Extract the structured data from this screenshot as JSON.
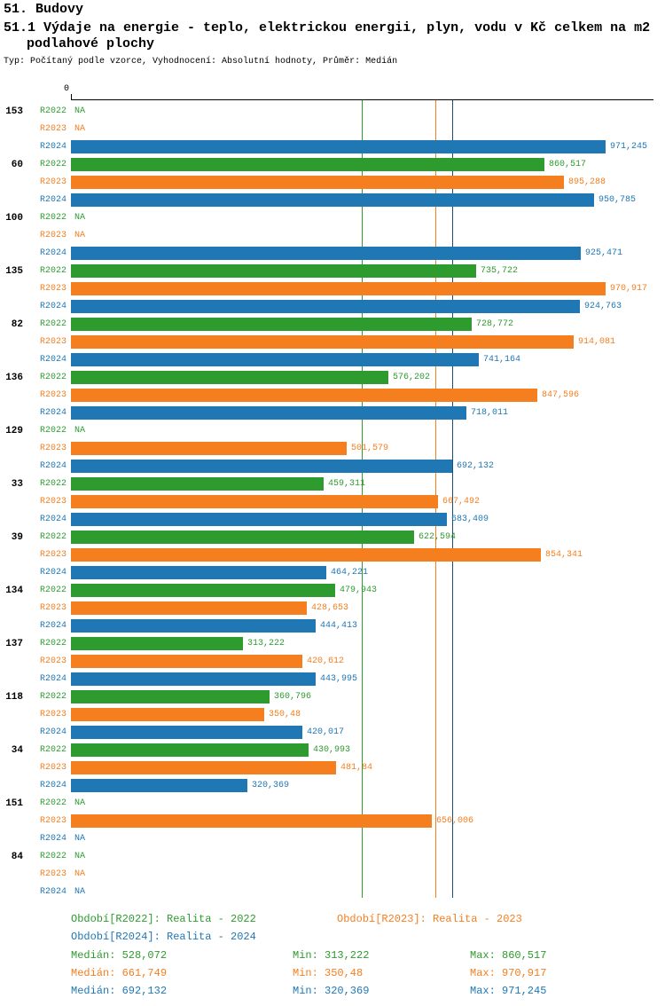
{
  "header": {
    "title": "51. Budovy",
    "subtitle_line1": "51.1 Výdaje na energie - teplo, elektrickou energii, plyn, vodu v Kč celkem na m2",
    "subtitle_line2": "podlahové plochy",
    "meta": "Typ: Počítaný podle vzorce, Vyhodnocení: Absolutní hodnoty, Průměr: Medián"
  },
  "chart_data": {
    "type": "bar",
    "orientation": "horizontal",
    "title": "51.1 Výdaje na energie - teplo, elektrickou energii, plyn, vodu v Kč celkem na m2 podlahové plochy",
    "axis": {
      "zero_label": "0",
      "xlim": [
        0,
        1060
      ],
      "gridlines": false
    },
    "categories": [
      "153",
      "60",
      "100",
      "135",
      "82",
      "136",
      "129",
      "33",
      "39",
      "134",
      "137",
      "118",
      "34",
      "151",
      "84"
    ],
    "series": [
      {
        "name": "R2022",
        "color": "#2e9b2e",
        "values": [
          null,
          860.517,
          null,
          735.722,
          728.772,
          576.202,
          null,
          459.311,
          622.594,
          479.943,
          313.222,
          360.796,
          430.993,
          null,
          null
        ],
        "labels": [
          "NA",
          "860,517",
          "NA",
          "735,722",
          "728,772",
          "576,202",
          "NA",
          "459,311",
          "622,594",
          "479,943",
          "313,222",
          "360,796",
          "430,993",
          "NA",
          "NA"
        ]
      },
      {
        "name": "R2023",
        "color": "#f57e1f",
        "values": [
          null,
          895.288,
          null,
          970.917,
          914.081,
          847.596,
          501.579,
          667.492,
          854.341,
          428.653,
          420.612,
          350.48,
          481.84,
          656.006,
          null
        ],
        "labels": [
          "NA",
          "895,288",
          "NA",
          "970,917",
          "914,081",
          "847,596",
          "501,579",
          "667,492",
          "854,341",
          "428,653",
          "420,612",
          "350,48",
          "481,84",
          "656,006",
          "NA"
        ]
      },
      {
        "name": "R2024",
        "color": "#1f77b4",
        "values": [
          971.245,
          950.785,
          925.471,
          924.763,
          741.164,
          718.011,
          692.132,
          683.409,
          464.221,
          444.413,
          443.995,
          420.017,
          320.369,
          null,
          null
        ],
        "labels": [
          "971,245",
          "950,785",
          "925,471",
          "924,763",
          "741,164",
          "718,011",
          "692,132",
          "683,409",
          "464,221",
          "444,413",
          "443,995",
          "420,017",
          "320,369",
          "NA",
          "NA"
        ]
      }
    ],
    "medians": [
      {
        "name": "R2022",
        "value": 528.072,
        "line_color": "#2e9b2e"
      },
      {
        "name": "R2023",
        "value": 661.749,
        "line_color": "#f57e1f"
      },
      {
        "name": "R2024",
        "value": 692.132,
        "line_color": "#1b4f72"
      }
    ],
    "legend": [
      {
        "period": "R2022",
        "label": "Období[R2022]: Realita - 2022"
      },
      {
        "period": "R2023",
        "label": "Období[R2023]: Realita - 2023"
      },
      {
        "period": "R2024",
        "label": "Období[R2024]: Realita - 2024"
      }
    ],
    "stats": [
      {
        "period": "R2022",
        "median": "Medián: 528,072",
        "min": "Min: 313,222",
        "max": "Max: 860,517"
      },
      {
        "period": "R2023",
        "median": "Medián: 661,749",
        "min": "Min: 350,48",
        "max": "Max: 970,917"
      },
      {
        "period": "R2024",
        "median": "Medián: 692,132",
        "min": "Min: 320,369",
        "max": "Max: 971,245"
      }
    ]
  }
}
